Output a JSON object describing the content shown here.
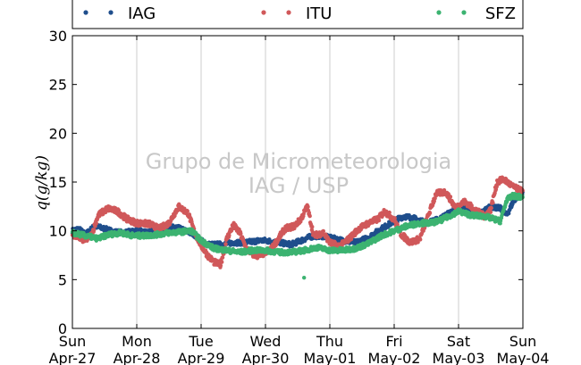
{
  "chart_data": {
    "type": "scatter",
    "ylabel": "q(g/kg)",
    "ylim": [
      0,
      30
    ],
    "yticks": [
      "0",
      "5",
      "10",
      "15",
      "20",
      "25",
      "30"
    ],
    "xlim": [
      "2014-04-27 00:00",
      "2014-05-04 00:00"
    ],
    "xticks": [
      {
        "day": "Sun",
        "date": "Apr-27"
      },
      {
        "day": "Mon",
        "date": "Apr-28"
      },
      {
        "day": "Tue",
        "date": "Apr-29"
      },
      {
        "day": "Wed",
        "date": "Apr-30"
      },
      {
        "day": "Thu",
        "date": "May-01"
      },
      {
        "day": "Fri",
        "date": "May-02"
      },
      {
        "day": "Sat",
        "date": "May-03"
      },
      {
        "day": "Sun",
        "date": "May-04"
      }
    ],
    "grid": "vertical",
    "legend_position": "top",
    "watermark": [
      "Grupo de Micrometeorologia",
      "IAG / USP"
    ],
    "series": [
      {
        "name": "IAG",
        "color": "#1f4e8c",
        "x": [
          0,
          0.1,
          0.2,
          0.35,
          0.5,
          0.65,
          0.8,
          1.0,
          1.2,
          1.4,
          1.6,
          1.75,
          1.9,
          2.0,
          2.1,
          2.3,
          2.5,
          2.7,
          2.9,
          3.0,
          3.2,
          3.4,
          3.55,
          3.7,
          3.85,
          4.0,
          4.2,
          4.4,
          4.6,
          4.75,
          4.9,
          5.0,
          5.15,
          5.3,
          5.5,
          5.7,
          5.85,
          6.0,
          6.2,
          6.35,
          6.5,
          6.65,
          6.75,
          6.85,
          6.95,
          7.0
        ],
        "y": [
          10.0,
          10.2,
          9.6,
          10.5,
          10.2,
          9.9,
          9.8,
          10.0,
          9.9,
          10.1,
          10.4,
          10.0,
          9.6,
          9.0,
          8.6,
          8.6,
          8.8,
          8.8,
          9.0,
          9.0,
          8.8,
          8.6,
          9.0,
          9.4,
          9.5,
          9.3,
          9.0,
          8.8,
          9.3,
          10.0,
          10.6,
          11.0,
          11.5,
          11.3,
          10.8,
          11.2,
          11.8,
          12.5,
          12.0,
          11.8,
          12.5,
          12.3,
          11.6,
          13.0,
          13.8,
          14.0
        ],
        "spread": 0.25
      },
      {
        "name": "ITU",
        "color": "#d0585a",
        "x": [
          0,
          0.1,
          0.2,
          0.3,
          0.4,
          0.55,
          0.7,
          0.85,
          1.0,
          1.2,
          1.35,
          1.5,
          1.65,
          1.8,
          1.9,
          2.0,
          2.1,
          2.2,
          2.3,
          2.4,
          2.5,
          2.6,
          2.7,
          2.8,
          2.9,
          3.0,
          3.1,
          3.2,
          3.3,
          3.45,
          3.55,
          3.65,
          3.75,
          3.9,
          4.0,
          4.15,
          4.3,
          4.45,
          4.6,
          4.75,
          4.85,
          5.0,
          5.1,
          5.25,
          5.4,
          5.5,
          5.65,
          5.8,
          5.95,
          6.1,
          6.25,
          6.4,
          6.5,
          6.6,
          6.7,
          6.85,
          7.0
        ],
        "y": [
          9.6,
          9.3,
          9.0,
          9.6,
          11.6,
          12.3,
          12.0,
          11.2,
          10.8,
          10.7,
          10.2,
          10.8,
          12.5,
          11.8,
          9.8,
          8.5,
          7.5,
          6.8,
          6.5,
          9.2,
          10.6,
          9.8,
          8.2,
          7.6,
          7.4,
          7.8,
          8.2,
          9.2,
          10.2,
          10.5,
          11.2,
          12.5,
          9.5,
          9.8,
          8.8,
          8.4,
          9.2,
          10.2,
          10.8,
          11.2,
          12.0,
          11.2,
          9.7,
          8.8,
          9.2,
          11.0,
          13.8,
          14.0,
          12.4,
          13.0,
          12.2,
          11.5,
          12.2,
          15.0,
          15.3,
          14.5,
          14.0
        ],
        "spread": 0.3
      },
      {
        "name": "SFZ",
        "color": "#3cb371",
        "x": [
          0,
          0.2,
          0.4,
          0.55,
          0.75,
          0.95,
          1.1,
          1.3,
          1.5,
          1.7,
          1.85,
          2.0,
          2.2,
          2.4,
          2.6,
          2.8,
          3.0,
          3.2,
          3.4,
          3.6,
          3.8,
          4.0,
          4.2,
          4.4,
          4.6,
          4.8,
          5.0,
          5.2,
          5.4,
          5.55,
          5.7,
          5.85,
          6.0,
          6.2,
          6.4,
          6.55,
          6.65,
          6.75,
          6.85,
          7.0
        ],
        "y": [
          9.8,
          9.5,
          9.2,
          9.6,
          9.8,
          9.5,
          9.5,
          9.6,
          9.8,
          9.9,
          10.0,
          9.0,
          8.2,
          8.0,
          7.8,
          8.0,
          8.0,
          7.8,
          7.8,
          8.0,
          8.3,
          8.0,
          8.0,
          8.2,
          8.7,
          9.5,
          10.0,
          10.5,
          10.8,
          10.8,
          11.0,
          11.5,
          12.0,
          11.6,
          11.5,
          11.2,
          11.0,
          13.2,
          13.6,
          13.4
        ],
        "spread": 0.25,
        "outliers": [
          [
            3.6,
            5.2
          ]
        ]
      }
    ]
  }
}
